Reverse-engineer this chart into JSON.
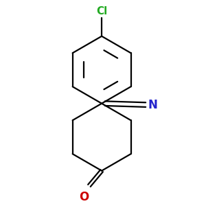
{
  "bg_color": "#ffffff",
  "bond_color": "#000000",
  "cl_color": "#22aa22",
  "o_color": "#cc0000",
  "n_color": "#2222cc",
  "lw": 1.6,
  "figsize": [
    3.0,
    3.0
  ],
  "dpi": 100,
  "cl_label": "Cl",
  "n_label": "N",
  "o_label": "O"
}
